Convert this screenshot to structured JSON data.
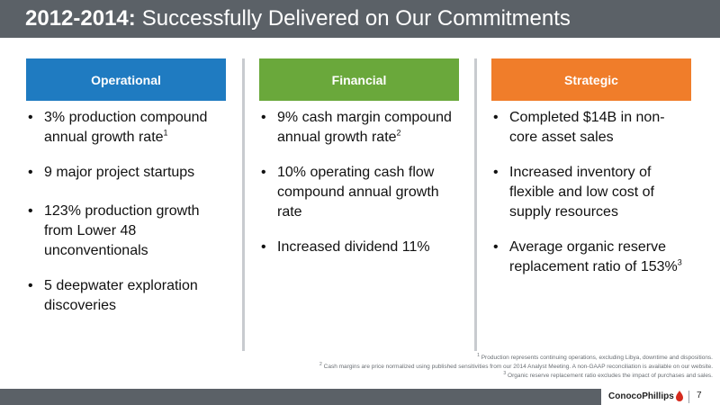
{
  "title": {
    "bold": "2012-2014:",
    "rest": "Successfully Delivered on Our Commitments"
  },
  "columns": [
    {
      "header": "Operational",
      "color": "#1f7bc1",
      "items": [
        {
          "text": "3% production compound annual growth rate",
          "sup": "1"
        },
        {
          "text": "9 major project startups",
          "sup": ""
        },
        {
          "text": "123% production growth from Lower 48 unconventionals",
          "sup": ""
        },
        {
          "text": "5 deepwater exploration discoveries",
          "sup": ""
        }
      ]
    },
    {
      "header": "Financial",
      "color": "#6aa83b",
      "items": [
        {
          "text": "9% cash margin compound annual growth rate",
          "sup": "2"
        },
        {
          "text": "10% operating cash flow compound annual growth rate",
          "sup": ""
        },
        {
          "text": "Increased dividend 11%",
          "sup": ""
        }
      ]
    },
    {
      "header": "Strategic",
      "color": "#f07d2a",
      "items": [
        {
          "text": "Completed $14B in non-core asset sales",
          "sup": ""
        },
        {
          "text": "Increased inventory of flexible and low cost of supply resources",
          "sup": ""
        },
        {
          "text": "Average organic reserve replacement ratio of 153%",
          "sup": "3"
        }
      ]
    }
  ],
  "footnotes": [
    {
      "num": "1",
      "text": "Production represents continuing operations, excluding Libya, downtime and dispositions."
    },
    {
      "num": "2",
      "text": "Cash margins are price normalized using published sensitivities from our 2014 Analyst Meeting. A non-GAAP reconciliation is available on our website."
    },
    {
      "num": "3",
      "text": "Organic reserve replacement ratio excludes the impact of purchases and sales."
    }
  ],
  "logo": {
    "text": "ConocoPhillips",
    "icon": "conocophillips-logo-icon",
    "color": "#d52b1e"
  },
  "page_number": "7"
}
